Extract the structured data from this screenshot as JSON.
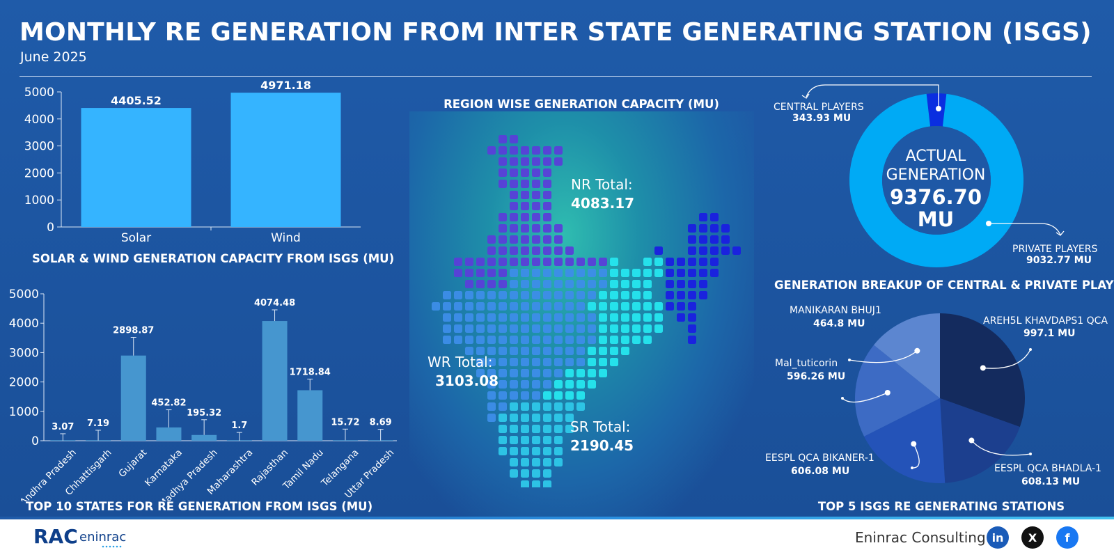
{
  "header": {
    "title": "MONTHLY RE GENERATION FROM INTER STATE GENERATING STATION (ISGS)",
    "subtitle": "June 2025"
  },
  "solar_wind": {
    "title": "SOLAR & WIND GENERATION CAPACITY FROM ISGS (MU)"
  },
  "states": {
    "title": "TOP 10 STATES FOR RE GENERATION FROM ISGS (MU)"
  },
  "region": {
    "title": "REGION WISE GENERATION CAPACITY (MU)",
    "nr_label": "NR Total:",
    "nr_value": "4083.17",
    "wr_label": "WR Total:",
    "wr_value": "3103.08",
    "sr_label": "SR Total:",
    "sr_value": "2190.45"
  },
  "donut": {
    "center_line1": "ACTUAL",
    "center_line2": "GENERATION",
    "center_value": "9376.70",
    "center_unit": "MU",
    "central_label": "CENTRAL PLAYERS",
    "central_value": "343.93 MU",
    "private_label": "PRIVATE PLAYERS",
    "private_value": "9032.77 MU",
    "title": "GENERATION BREAKUP OF CENTRAL & PRIVATE PLAYERS"
  },
  "stations": {
    "title": "TOP 5 ISGS RE GENERATING STATIONS",
    "labels": [
      {
        "name": "AREH5L KHAVDAPS1 QCA",
        "value": "997.1 MU"
      },
      {
        "name": "EESPL QCA BHADLA-1",
        "value": "608.13 MU"
      },
      {
        "name": "EESPL QCA BIKANER-1",
        "value": "606.08 MU"
      },
      {
        "name": "Mal_tuticorin",
        "value": "596.26 MU"
      },
      {
        "name": "MANIKARAN BHUJ1",
        "value": "464.8 MU"
      }
    ]
  },
  "footer": {
    "logo_text": "RAC",
    "logo_sub": "eninrac",
    "company": "Eninrac Consulting",
    "social": [
      "in",
      "X",
      "f"
    ]
  },
  "colors": {
    "bar_light": "#35b4ff",
    "bar_states": "#4696cf",
    "donut_private": "#00aaf5",
    "donut_central": "#0a2ee0",
    "pie": [
      "#142b5e",
      "#1c3f8e",
      "#2453b8",
      "#3d6bc4",
      "#5c86d0"
    ],
    "map_north": "#5a3fd8",
    "map_west": "#3d8de8",
    "map_east": "#26e6ee",
    "map_ne": "#1a1fe0",
    "map_south": "#2ec8e8"
  },
  "chart_data": [
    {
      "type": "bar",
      "title": "SOLAR & WIND GENERATION CAPACITY FROM ISGS (MU)",
      "categories": [
        "Solar",
        "Wind"
      ],
      "values": [
        4405.52,
        4971.18
      ],
      "value_labels": [
        "4405.52",
        "4971.18"
      ],
      "ylim": [
        0,
        5000
      ],
      "yticks": [
        "0",
        "1000",
        "2000",
        "3000",
        "4000",
        "5000"
      ]
    },
    {
      "type": "bar",
      "title": "TOP 10 STATES FOR RE GENERATION FROM ISGS (MU)",
      "categories": [
        "Andhra Pradesh",
        "Chhattisgarh",
        "Gujarat",
        "Karnataka",
        "Madhya Pradesh",
        "Maharashtra",
        "Rajasthan",
        "Tamil Nadu",
        "Telangana",
        "Uttar Pradesh"
      ],
      "values": [
        3.07,
        7.19,
        2898.87,
        452.82,
        195.32,
        1.7,
        4074.48,
        1718.84,
        15.72,
        8.69
      ],
      "value_labels": [
        "3.07",
        "7.19",
        "2898.87",
        "452.82",
        "195.32",
        "1.7",
        "4074.48",
        "1718.84",
        "15.72",
        "8.69"
      ],
      "ylim": [
        0,
        5000
      ],
      "yticks": [
        "0",
        "1000",
        "2000",
        "3000",
        "4000",
        "5000"
      ]
    },
    {
      "type": "pie",
      "title": "GENERATION BREAKUP OF CENTRAL & PRIVATE PLAYERS",
      "categories": [
        "CENTRAL PLAYERS",
        "PRIVATE PLAYERS"
      ],
      "values": [
        343.93,
        9032.77
      ]
    },
    {
      "type": "pie",
      "title": "TOP 5 ISGS RE GENERATING STATIONS",
      "categories": [
        "AREH5L KHAVDAPS1 QCA",
        "EESPL QCA BHADLA-1",
        "EESPL QCA BIKANER-1",
        "Mal_tuticorin",
        "MANIKARAN BHUJ1"
      ],
      "values": [
        997.1,
        608.13,
        606.08,
        596.26,
        464.8
      ]
    }
  ]
}
